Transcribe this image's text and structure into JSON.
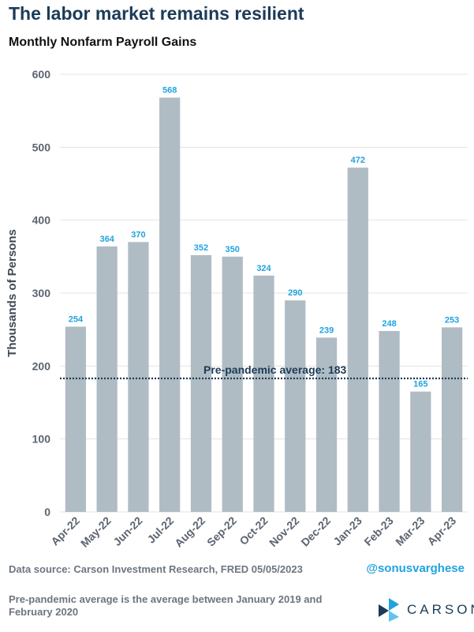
{
  "title": "The labor market remains resilient",
  "subtitle": "Monthly Nonfarm Payroll Gains",
  "chart_data": {
    "type": "bar",
    "categories": [
      "Apr-22",
      "May-22",
      "Jun-22",
      "Jul-22",
      "Aug-22",
      "Sep-22",
      "Oct-22",
      "Nov-22",
      "Dec-22",
      "Jan-23",
      "Feb-23",
      "Mar-23",
      "Apr-23"
    ],
    "values": [
      254,
      364,
      370,
      568,
      352,
      350,
      324,
      290,
      239,
      472,
      248,
      165,
      253
    ],
    "ylabel": "Thousands of Persons",
    "ylim": [
      0,
      600
    ],
    "yticks": [
      0,
      100,
      200,
      300,
      400,
      500,
      600
    ],
    "grid": true,
    "reference_line": {
      "value": 183,
      "label": "Pre-pandemic average: 183"
    }
  },
  "colors": {
    "bar": "#b0bcc4",
    "data_label": "#1fa3e0",
    "reference_line": "#1c3b57",
    "grid": "#e3e3e3",
    "title": "#1c3b57"
  },
  "footer": {
    "source": "Data source: Carson Investment Research, FRED   05/05/2023",
    "note": "Pre-pandemic average is the average between January 2019 and February 2020",
    "handle": "@sonusvarghese"
  },
  "logo": {
    "text": "CARSON",
    "icon": "carson-logo-icon"
  }
}
